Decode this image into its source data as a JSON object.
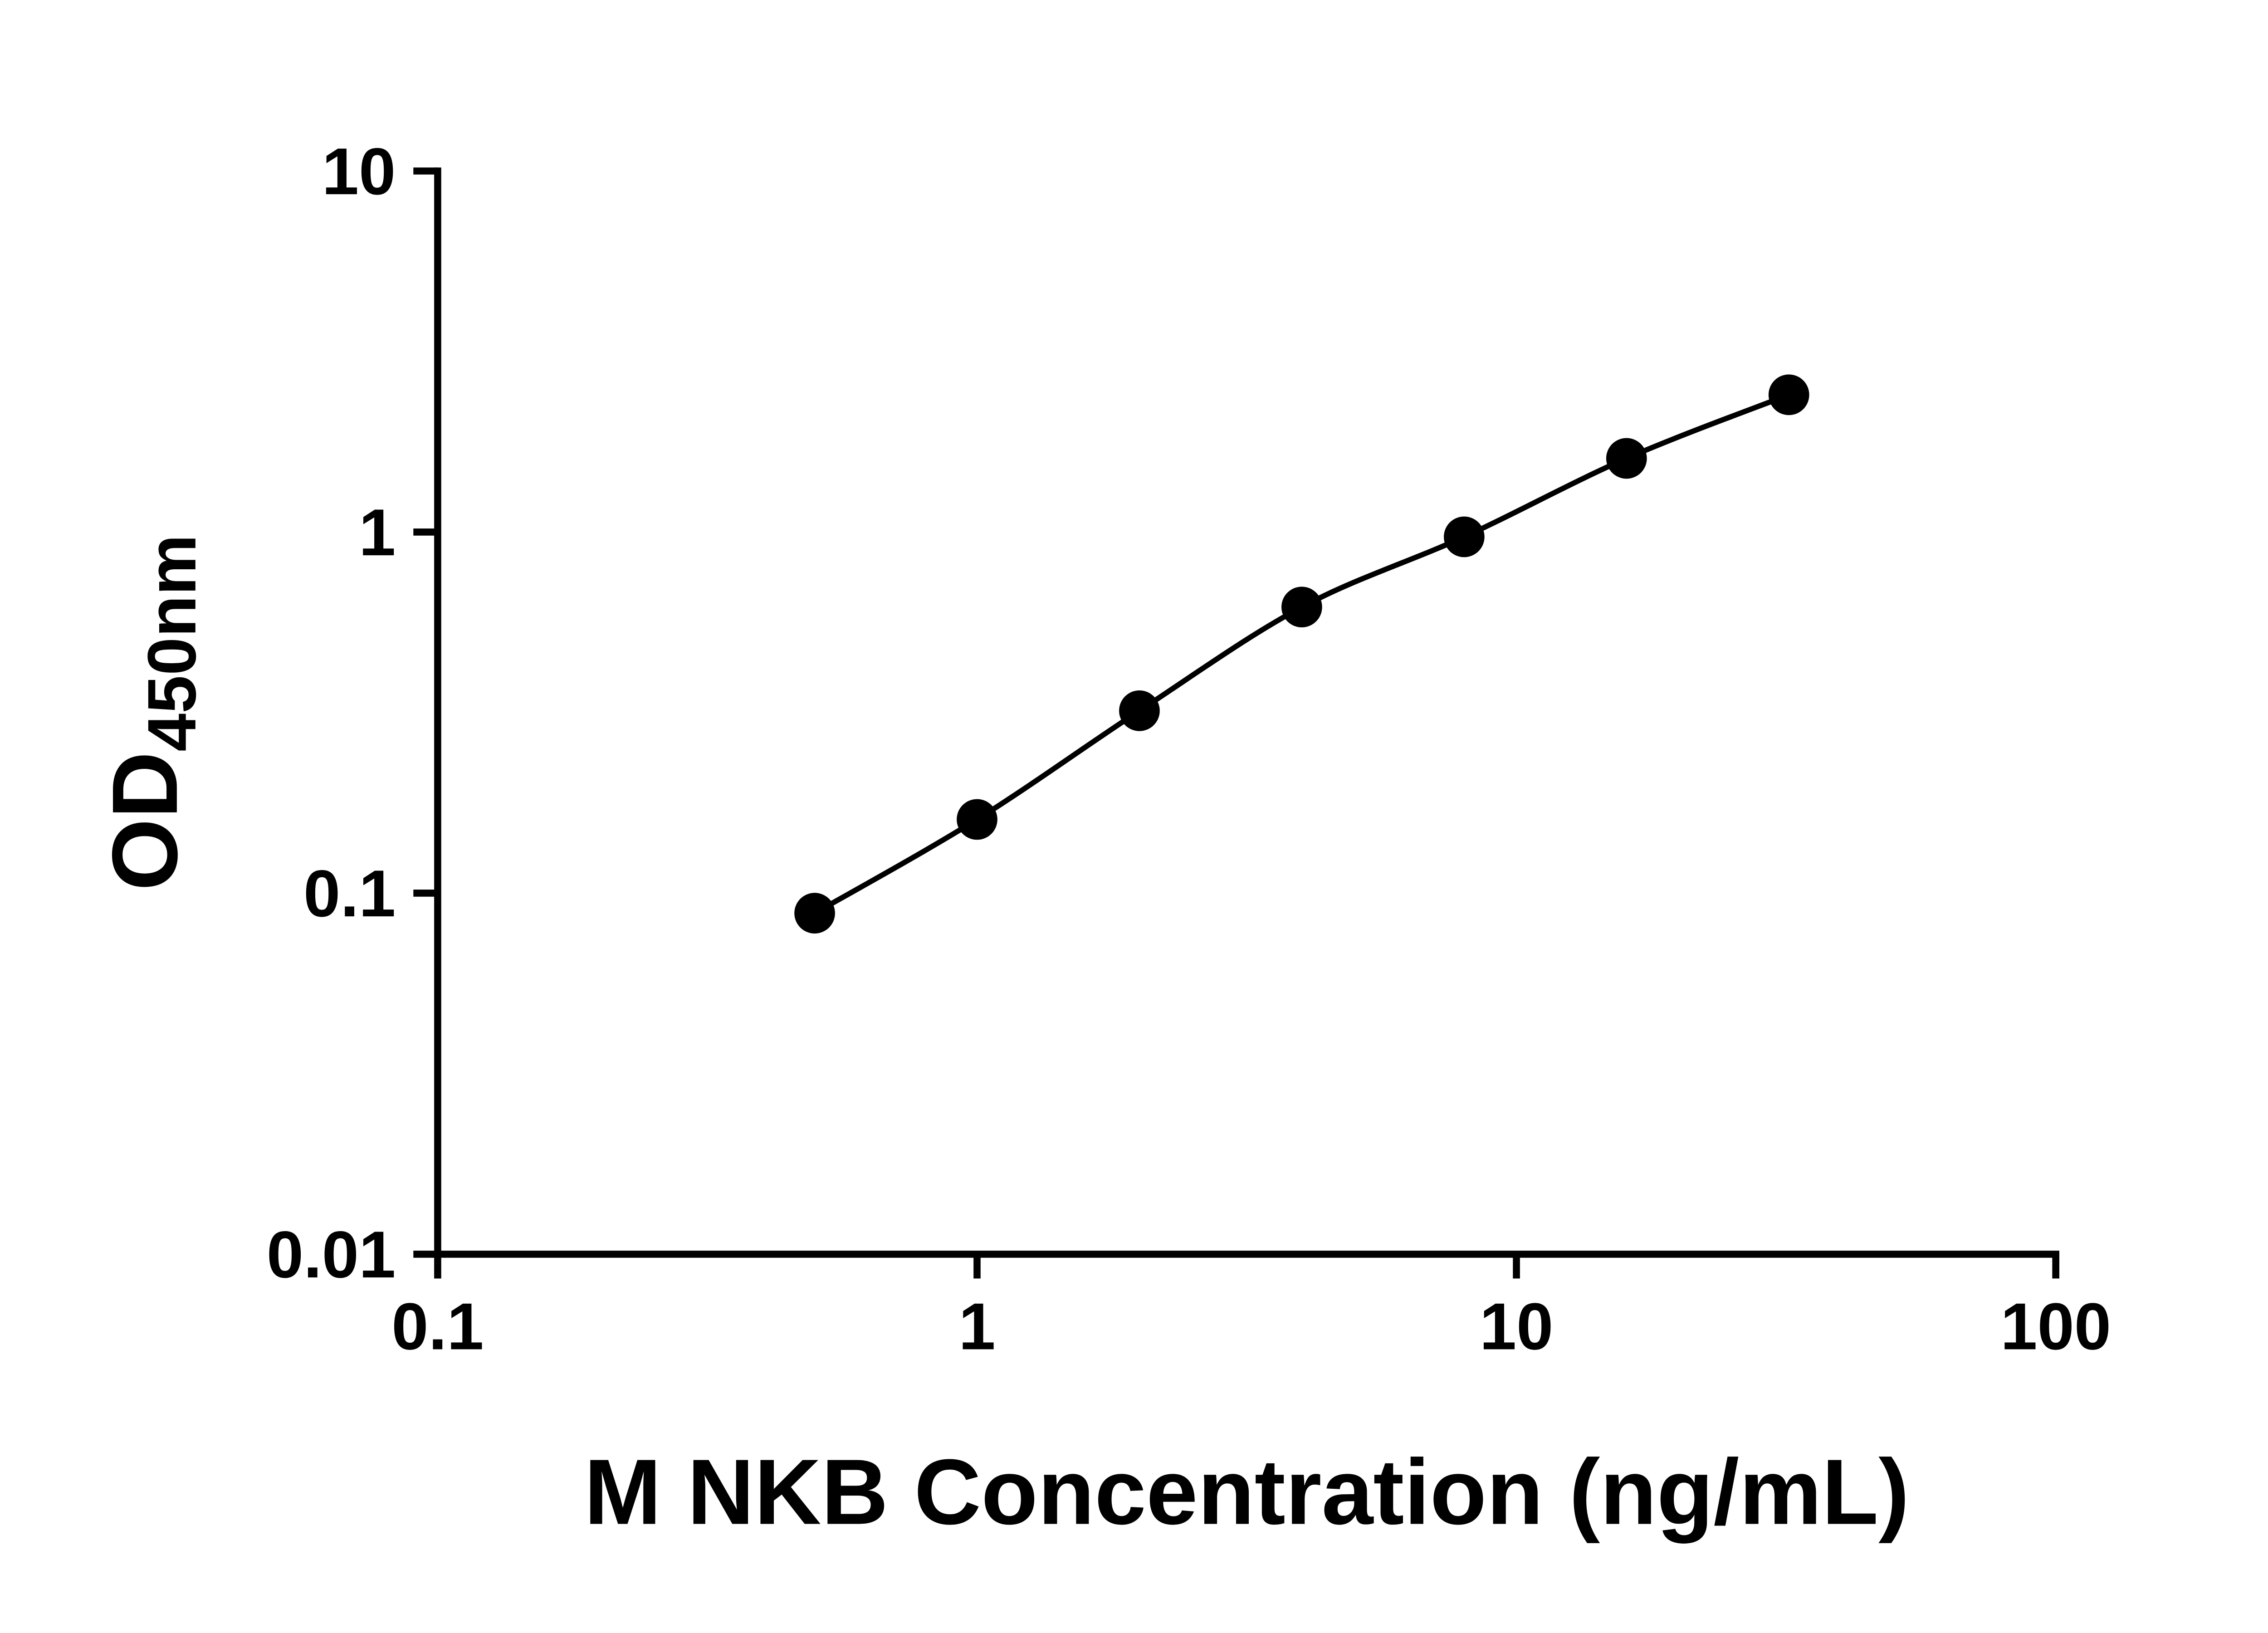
{
  "chart_data": {
    "type": "scatter",
    "title": "",
    "xlabel": "M NKB Concentration (ng/mL)",
    "ylabel": "OD450nm",
    "ylabel_base": "OD",
    "ylabel_sub": "450nm",
    "xscale": "log",
    "yscale": "log",
    "xlim": [
      0.1,
      100
    ],
    "ylim": [
      0.01,
      10
    ],
    "x_ticks": [
      0.1,
      1,
      10,
      100
    ],
    "x_tick_labels": [
      "0.1",
      "1",
      "10",
      "100"
    ],
    "y_ticks": [
      0.01,
      0.1,
      1,
      10
    ],
    "y_tick_labels": [
      "0.01",
      "0.1",
      "1",
      "10"
    ],
    "grid": false,
    "legend": "none",
    "series": [
      {
        "x": [
          0.5,
          1,
          2,
          4,
          8,
          16,
          32
        ],
        "y": [
          0.088,
          0.16,
          0.32,
          0.62,
          0.97,
          1.6,
          2.4
        ],
        "marker": "filled-circle",
        "line": "smooth",
        "color": "#000000"
      }
    ],
    "colors": {
      "axis": "#000000",
      "line": "#000000",
      "marker": "#000000",
      "text": "#000000",
      "background": "#ffffff"
    }
  }
}
